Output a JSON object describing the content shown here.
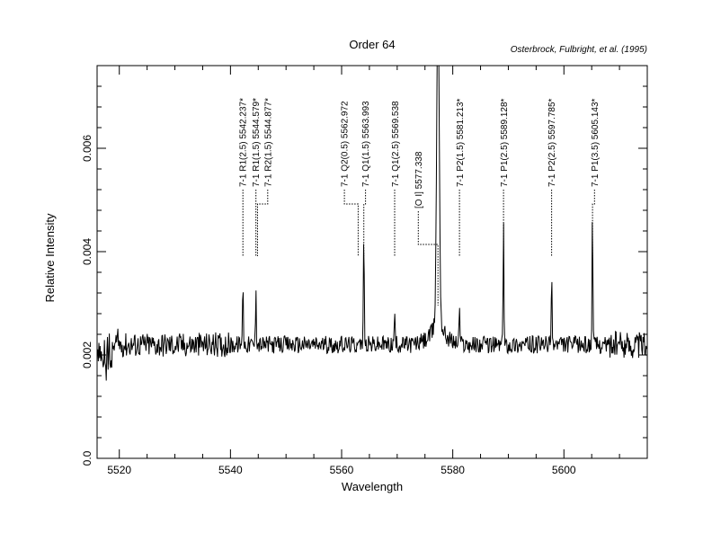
{
  "chart_data": {
    "type": "line",
    "title": "Order 64",
    "attribution": "Osterbrock, Fulbright, et al. (1995)",
    "xlabel": "Wavelength",
    "ylabel": "Relative Intensity",
    "xlim": [
      5516,
      5615
    ],
    "ylim": [
      0.0,
      0.0076
    ],
    "x_ticks": [
      5520,
      5540,
      5560,
      5580,
      5600
    ],
    "y_ticks": [
      0.0,
      0.002,
      0.004,
      0.006
    ],
    "x_tick_labels": [
      "5520",
      "5540",
      "5560",
      "5580",
      "5600"
    ],
    "y_tick_labels": [
      "0.0",
      "0.002",
      "0.004",
      "0.006"
    ],
    "baseline": 0.0022,
    "series": [
      {
        "color": "#000000",
        "emission_lines": [
          {
            "x": 5542.24,
            "peak": 0.0036
          },
          {
            "x": 5544.58,
            "peak": 0.0034
          },
          {
            "x": 5562.97,
            "peak": 0.0024
          },
          {
            "x": 5563.99,
            "peak": 0.0045
          },
          {
            "x": 5569.54,
            "peak": 0.0029
          },
          {
            "x": 5577.34,
            "peak": 0.0085
          },
          {
            "x": 5581.21,
            "peak": 0.003
          },
          {
            "x": 5589.13,
            "peak": 0.0047
          },
          {
            "x": 5597.79,
            "peak": 0.0037
          },
          {
            "x": 5605.14,
            "peak": 0.0049
          }
        ]
      }
    ],
    "annotations": [
      {
        "text": "7-1 R1(2.5) 5542.237*",
        "x": 5542.237,
        "bend_x": 5542.237
      },
      {
        "text": "7-1 R1(1.5) 5544.579*",
        "x": 5544.579,
        "bend_x": 5544.579
      },
      {
        "text": "7-1 R2(1.5) 5544.877*",
        "x": 5544.877,
        "bend_x": 5546.7
      },
      {
        "text": "7-1 Q2(0.5) 5562.972",
        "x": 5562.972,
        "bend_x": 5560.5
      },
      {
        "text": "7-1 Q1(1.5) 5563.993",
        "x": 5563.993,
        "bend_x": 5564.3
      },
      {
        "text": "7-1 Q1(2.5) 5569.538",
        "x": 5569.538,
        "bend_x": 5569.6
      },
      {
        "text": "[O I] 5577.338",
        "x": 5577.338,
        "bend_x": 5573.8
      },
      {
        "text": "7-1 P2(1.5) 5581.213*",
        "x": 5581.213,
        "bend_x": 5581.3
      },
      {
        "text": "7-1 P1(2.5) 5589.128*",
        "x": 5589.128,
        "bend_x": 5589.2
      },
      {
        "text": "7-1 P2(2.5) 5597.785*",
        "x": 5597.785,
        "bend_x": 5597.8
      },
      {
        "text": "7-1 P1(3.5) 5605.143*",
        "x": 5605.143,
        "bend_x": 5605.5
      }
    ],
    "grid": false,
    "legend": "none"
  }
}
